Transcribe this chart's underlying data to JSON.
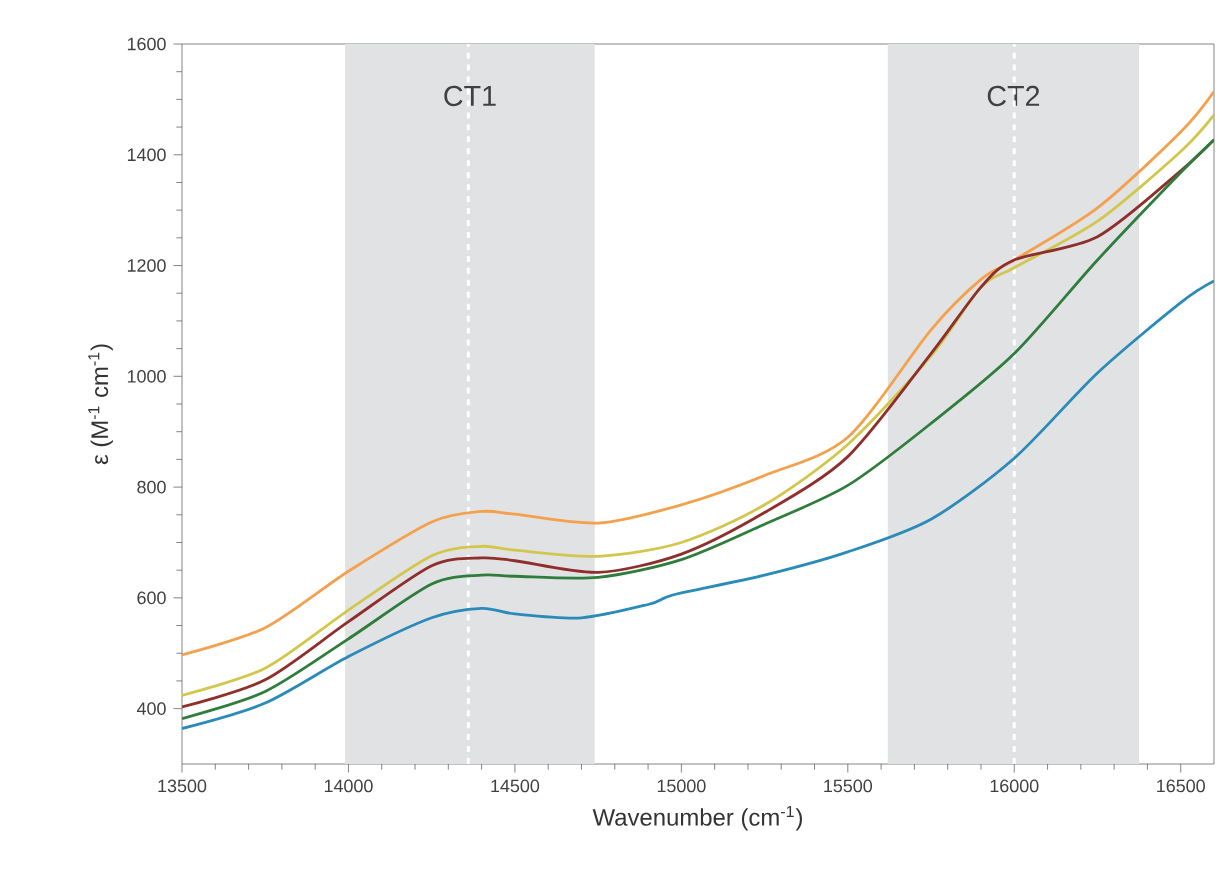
{
  "chart_data": {
    "type": "line",
    "xlabel": "Wavenumber (cm$^{-1}$)",
    "ylabel": "ε (M$^{-1}$ cm$^{-1}$)",
    "xlim": [
      13500,
      16600
    ],
    "ylim": [
      300,
      1600
    ],
    "xticks": [
      13500,
      14000,
      14500,
      15000,
      15500,
      16000,
      16500
    ],
    "yticks": [
      400,
      600,
      800,
      1000,
      1200,
      1400,
      1600
    ],
    "grid": false,
    "marker": "none",
    "line_style": "solid",
    "bands": [
      {
        "axis": "x",
        "from": 13990,
        "to": 14740,
        "label": "CT1",
        "color": "#e1e2e4"
      },
      {
        "axis": "x",
        "from": 15620,
        "to": 16375,
        "label": "CT2",
        "color": "#e1e2e4"
      }
    ],
    "ref_lines": [
      {
        "axis": "x",
        "value": 14360,
        "color": "#ffffff",
        "line_style": "dashed"
      },
      {
        "axis": "x",
        "value": 16000,
        "color": "#ffffff",
        "line_style": "dashed"
      }
    ],
    "series": [
      {
        "color": "#f4a04c",
        "x": [
          13500,
          13750,
          14000,
          14250,
          14400,
          14500,
          14750,
          15000,
          15250,
          15500,
          15750,
          15900,
          16000,
          16250,
          16500,
          16600
        ],
        "values": [
          497,
          546,
          648,
          737,
          756,
          751,
          735,
          768,
          821,
          890,
          1084,
          1175,
          1210,
          1304,
          1441,
          1514
        ]
      },
      {
        "color": "#d2c74c",
        "x": [
          13500,
          13750,
          14000,
          14250,
          14400,
          14500,
          14750,
          15000,
          15250,
          15500,
          15750,
          15900,
          16000,
          16250,
          16500,
          16600
        ],
        "values": [
          424,
          473,
          578,
          676,
          693,
          686,
          675,
          700,
          768,
          877,
          1037,
          1161,
          1196,
          1280,
          1406,
          1472
        ]
      },
      {
        "color": "#8e2f2b",
        "x": [
          13500,
          13750,
          14000,
          14250,
          14400,
          14500,
          14750,
          15000,
          15250,
          15500,
          15750,
          15900,
          16000,
          16250,
          16500,
          16600
        ],
        "values": [
          403,
          452,
          557,
          658,
          672,
          667,
          646,
          679,
          754,
          855,
          1041,
          1161,
          1210,
          1252,
          1371,
          1427
        ]
      },
      {
        "color": "#2f7d3c",
        "x": [
          13500,
          13750,
          14000,
          14250,
          14400,
          14500,
          14750,
          15000,
          15250,
          15500,
          15750,
          16000,
          16250,
          16500,
          16600
        ],
        "values": [
          382,
          431,
          526,
          625,
          641,
          639,
          637,
          669,
          733,
          803,
          915,
          1041,
          1210,
          1368,
          1427
        ]
      },
      {
        "color": "#2a8ab8",
        "x": [
          13500,
          13750,
          14000,
          14250,
          14400,
          14500,
          14700,
          14900,
          14950,
          15000,
          15250,
          15500,
          15750,
          16000,
          16250,
          16500,
          16600
        ],
        "values": [
          364,
          410,
          494,
          564,
          581,
          571,
          564,
          588,
          600,
          609,
          641,
          683,
          742,
          852,
          1006,
          1133,
          1172
        ]
      }
    ]
  }
}
